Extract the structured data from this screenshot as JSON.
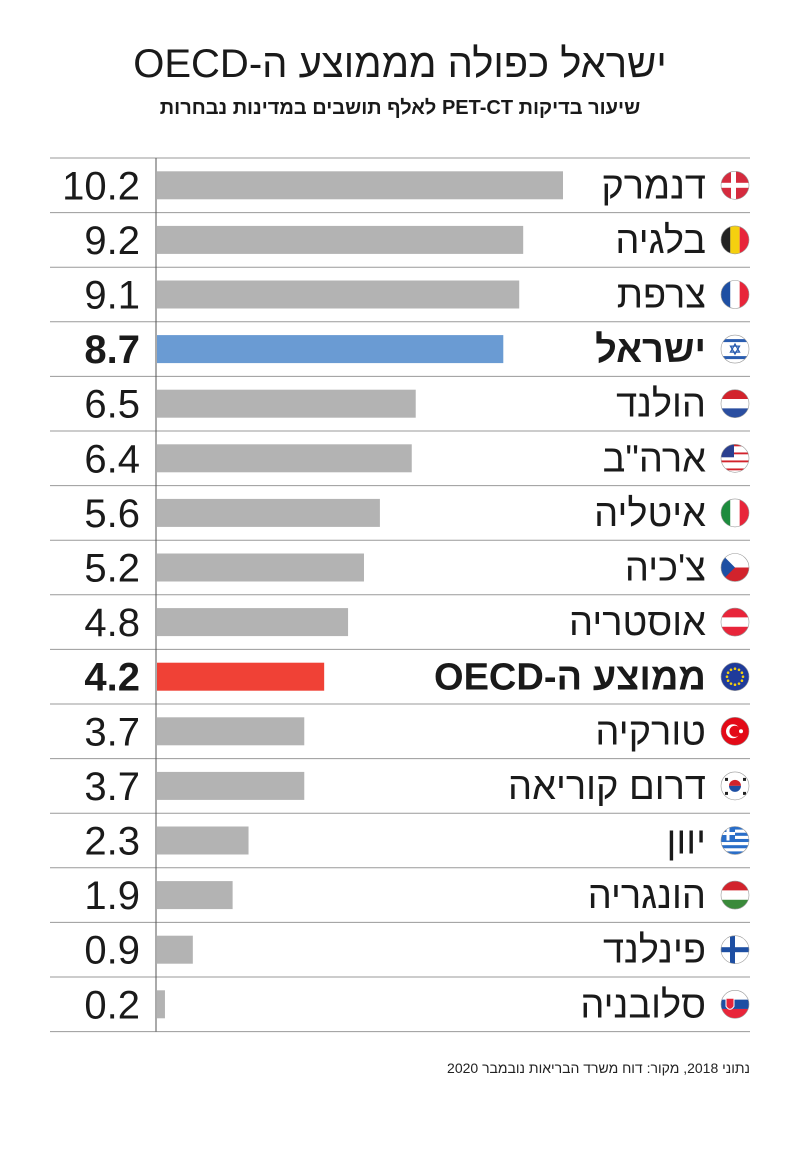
{
  "title": "ישראל כפולה מממוצע ה-OECD",
  "subtitle": "שיעור בדיקות PET-CT לאלף תושבים במדינות נבחרות",
  "source": "נתוני 2018, מקור: דוח משרד הבריאות נובמבר 2020",
  "colors": {
    "default": "#b3b3b3",
    "israel": "#6a9bd3",
    "oecd": "#f04136",
    "rule": "#9a9a9a"
  },
  "chart_data": {
    "type": "bar",
    "orientation": "horizontal",
    "xlim": [
      0,
      10.2
    ],
    "categories": [
      "דנמרק",
      "בלגיה",
      "צרפת",
      "ישראל",
      "הולנד",
      "ארה\"ב",
      "איטליה",
      "צ'כיה",
      "אוסטריה",
      "ממוצע ה-OECD",
      "טורקיה",
      "דרום קוריאה",
      "יוון",
      "הונגריה",
      "פינלנד",
      "סלובניה"
    ],
    "values": [
      10.2,
      9.2,
      9.1,
      8.7,
      6.5,
      6.4,
      5.6,
      5.2,
      4.8,
      4.2,
      3.7,
      3.7,
      2.3,
      1.9,
      0.9,
      0.2
    ],
    "value_labels": [
      "10.2",
      "9.2",
      "9.1",
      "8.7",
      "6.5",
      "6.4",
      "5.6",
      "5.2",
      "4.8",
      "4.2",
      "3.7",
      "3.7",
      "2.3",
      "1.9",
      "0.9",
      "0.2"
    ],
    "highlight": [
      "default",
      "default",
      "default",
      "israel",
      "default",
      "default",
      "default",
      "default",
      "default",
      "oecd",
      "default",
      "default",
      "default",
      "default",
      "default",
      "default"
    ],
    "bold": [
      false,
      false,
      false,
      true,
      false,
      false,
      false,
      false,
      false,
      true,
      false,
      false,
      false,
      false,
      false,
      false
    ],
    "flags": [
      "denmark-flag",
      "belgium-flag",
      "france-flag",
      "israel-flag",
      "netherlands-flag",
      "usa-flag",
      "italy-flag",
      "czech-flag",
      "austria-flag",
      "eu-flag",
      "turkey-flag",
      "south-korea-flag",
      "greece-flag",
      "hungary-flag",
      "finland-flag",
      "slovakia-flag"
    ]
  }
}
